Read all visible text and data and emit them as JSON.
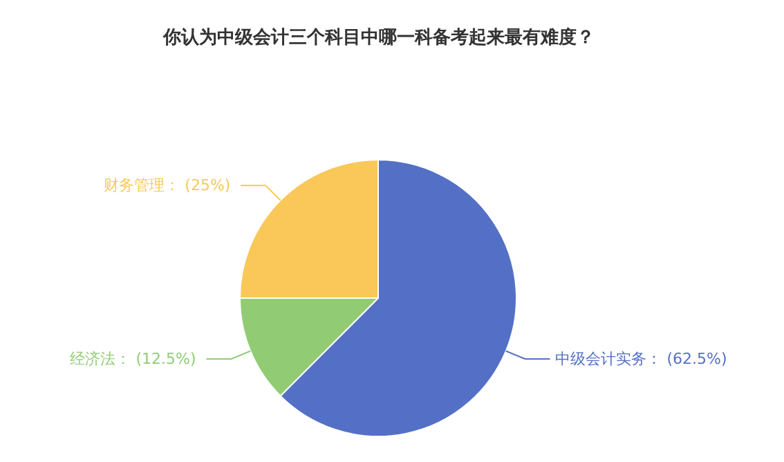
{
  "chart_data": {
    "type": "pie",
    "title": "你认为中级会计三个科目中哪一科备考起来最有难度？",
    "categories": [
      "中级会计实务",
      "经济法",
      "财务管理"
    ],
    "values": [
      62.5,
      12.5,
      25
    ],
    "value_labels": [
      "(62.5%)",
      "(12.5%)",
      "(25%)"
    ],
    "colors": [
      "#5470c6",
      "#91cc75",
      "#fac858"
    ]
  }
}
